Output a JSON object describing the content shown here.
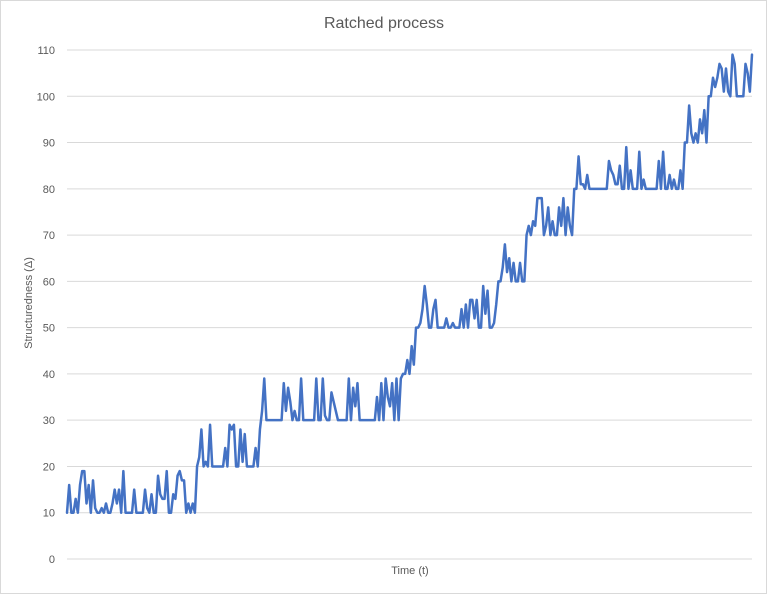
{
  "chart_data": {
    "type": "line",
    "title": "Ratched process",
    "xlabel": "Time (t)",
    "ylabel": "Structuredness (Δ)",
    "ylim": [
      0,
      110
    ],
    "yticks": [
      0,
      10,
      20,
      30,
      40,
      50,
      60,
      70,
      80,
      90,
      100,
      110
    ],
    "grid": true,
    "legend": "none",
    "color": "#4472c4",
    "series": [
      {
        "values": [
          10,
          16,
          10,
          10,
          13,
          10,
          16,
          19,
          19,
          12,
          16,
          10,
          17,
          11,
          10,
          10,
          11,
          10,
          12,
          10,
          10,
          12,
          15,
          12,
          15,
          10,
          19,
          10,
          10,
          10,
          10,
          15,
          10,
          10,
          10,
          10,
          15,
          11,
          10,
          14,
          10,
          10,
          18,
          14,
          13,
          13,
          19,
          10,
          10,
          14,
          13,
          18,
          19,
          17,
          17,
          10,
          12,
          10,
          12,
          10,
          20,
          22,
          28,
          20,
          21,
          20,
          29,
          20,
          20,
          20,
          20,
          20,
          20,
          24,
          20,
          29,
          28,
          29,
          20,
          20,
          28,
          21,
          27,
          20,
          20,
          20,
          20,
          24,
          20,
          28,
          32,
          39,
          30,
          30,
          30,
          30,
          30,
          30,
          30,
          30,
          38,
          32,
          37,
          34,
          30,
          32,
          30,
          30,
          39,
          30,
          30,
          30,
          30,
          30,
          30,
          39,
          30,
          30,
          39,
          31,
          30,
          30,
          36,
          34,
          32,
          30,
          30,
          30,
          30,
          30,
          39,
          30,
          37,
          33,
          38,
          30,
          30,
          30,
          30,
          30,
          30,
          30,
          30,
          35,
          30,
          38,
          30,
          39,
          35,
          33,
          38,
          30,
          39,
          30,
          39,
          40,
          40,
          43,
          40,
          46,
          42,
          50,
          50,
          51,
          54,
          59,
          55,
          50,
          50,
          54,
          56,
          50,
          50,
          50,
          50,
          52,
          50,
          50,
          51,
          50,
          50,
          50,
          54,
          50,
          55,
          50,
          56,
          56,
          52,
          56,
          50,
          50,
          59,
          53,
          58,
          50,
          50,
          51,
          55,
          60,
          60,
          63,
          68,
          62,
          65,
          60,
          64,
          60,
          60,
          64,
          60,
          60,
          70,
          72,
          70,
          73,
          72,
          78,
          78,
          78,
          70,
          72,
          76,
          70,
          73,
          70,
          70,
          76,
          72,
          78,
          70,
          76,
          72,
          70,
          80,
          80,
          87,
          81,
          81,
          80,
          83,
          80,
          80,
          80,
          80,
          80,
          80,
          80,
          80,
          80,
          86,
          84,
          83,
          81,
          81,
          85,
          80,
          80,
          89,
          80,
          84,
          80,
          80,
          80,
          88,
          80,
          82,
          80,
          80,
          80,
          80,
          80,
          80,
          86,
          80,
          88,
          80,
          80,
          83,
          80,
          82,
          80,
          80,
          84,
          80,
          90,
          90,
          98,
          92,
          90,
          92,
          90,
          95,
          92,
          97,
          90,
          100,
          100,
          104,
          102,
          104,
          107,
          106,
          101,
          106,
          101,
          100,
          109,
          107,
          100,
          100,
          100,
          100,
          107,
          105,
          101,
          109
        ]
      }
    ]
  }
}
